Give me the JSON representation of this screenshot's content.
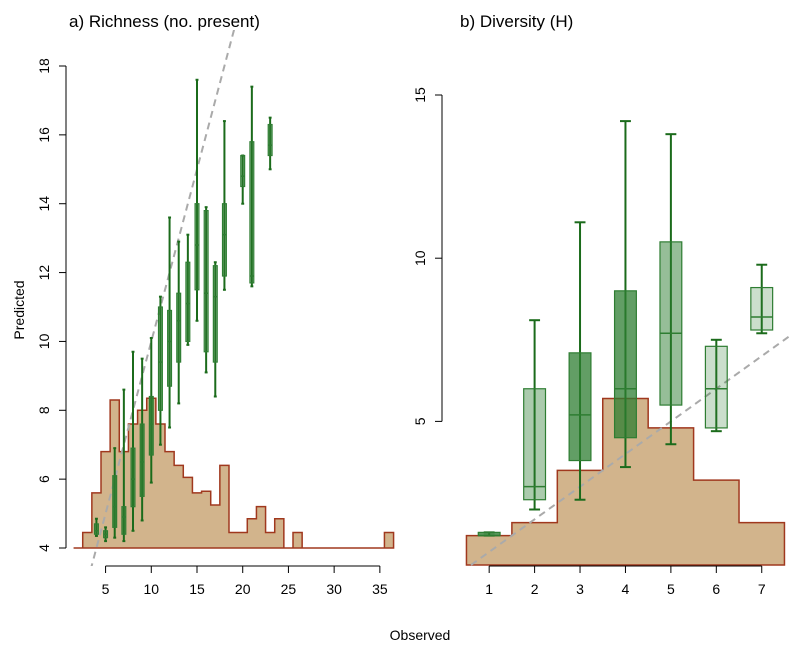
{
  "xlabel": "Observed",
  "ylabel": "Predicted",
  "colors": {
    "hist_fill": "#D2B48C",
    "hist_stroke": "#A0381E",
    "box_stroke": "#2E7D32",
    "whisker": "#1B6B1B",
    "identity_line": "#AAAAAA",
    "axis": "#000000"
  },
  "chart_data": [
    {
      "type": "box",
      "title": "a) Richness (no. present)",
      "xlim": [
        1,
        36
      ],
      "ylim": [
        4,
        18
      ],
      "xticks": [
        5,
        10,
        15,
        20,
        25,
        30,
        35
      ],
      "yticks": [
        4,
        6,
        8,
        10,
        12,
        14,
        16,
        18
      ],
      "identity_line": true,
      "histogram": {
        "x": [
          1.5,
          2.5,
          3.5,
          4.5,
          5.5,
          6.5,
          7.5,
          8.5,
          9.5,
          10.5,
          11.5,
          12.5,
          13.5,
          14.5,
          15.5,
          16.5,
          17.5,
          18.5,
          19.5,
          20.5,
          21.5,
          22.5,
          23.5,
          24.5,
          25.5,
          26.5,
          27.5,
          28.5,
          29.5,
          30.5,
          31.5,
          32.5,
          33.5,
          34.5,
          35.5,
          36.5
        ],
        "y": [
          4.0,
          4.45,
          5.6,
          6.8,
          8.3,
          6.8,
          7.6,
          8.0,
          8.35,
          7.6,
          6.8,
          6.4,
          6.05,
          5.6,
          5.65,
          5.25,
          6.4,
          4.45,
          4.45,
          4.85,
          5.2,
          4.45,
          4.85,
          4.0,
          4.45,
          4.0,
          4.0,
          4.0,
          4.0,
          4.0,
          4.0,
          4.0,
          4.0,
          4.0,
          4.45,
          4.0
        ]
      },
      "boxes": [
        {
          "x": 4,
          "q1": 4.4,
          "median": 4.5,
          "q3": 4.7,
          "lo": 4.35,
          "hi": 4.85,
          "opacity": 0.5
        },
        {
          "x": 5,
          "q1": 4.3,
          "median": 4.4,
          "q3": 4.5,
          "lo": 4.2,
          "hi": 4.6,
          "opacity": 0.5
        },
        {
          "x": 6,
          "q1": 4.6,
          "median": 5.2,
          "q3": 6.1,
          "lo": 4.3,
          "hi": 6.9,
          "opacity": 0.8
        },
        {
          "x": 7,
          "q1": 4.4,
          "median": 4.9,
          "q3": 5.2,
          "lo": 4.2,
          "hi": 8.6,
          "opacity": 0.6
        },
        {
          "x": 8,
          "q1": 5.2,
          "median": 6.0,
          "q3": 6.9,
          "lo": 4.5,
          "hi": 9.7,
          "opacity": 0.6
        },
        {
          "x": 9,
          "q1": 5.5,
          "median": 6.5,
          "q3": 7.6,
          "lo": 4.8,
          "hi": 9.5,
          "opacity": 0.7
        },
        {
          "x": 10,
          "q1": 6.7,
          "median": 7.6,
          "q3": 8.4,
          "lo": 5.9,
          "hi": 10.1,
          "opacity": 0.8
        },
        {
          "x": 11,
          "q1": 8.0,
          "median": 9.4,
          "q3": 11.0,
          "lo": 7.0,
          "hi": 11.3,
          "opacity": 0.5
        },
        {
          "x": 12,
          "q1": 8.7,
          "median": 10.0,
          "q3": 10.9,
          "lo": 7.5,
          "hi": 13.6,
          "opacity": 0.6
        },
        {
          "x": 13,
          "q1": 9.4,
          "median": 10.6,
          "q3": 11.4,
          "lo": 8.2,
          "hi": 12.9,
          "opacity": 0.6
        },
        {
          "x": 14,
          "q1": 10.0,
          "median": 11.1,
          "q3": 12.3,
          "lo": 9.9,
          "hi": 13.1,
          "opacity": 0.5
        },
        {
          "x": 15,
          "q1": 11.5,
          "median": 12.8,
          "q3": 14.0,
          "lo": 10.6,
          "hi": 17.6,
          "opacity": 0.5
        },
        {
          "x": 16,
          "q1": 9.7,
          "median": 11.4,
          "q3": 13.8,
          "lo": 9.1,
          "hi": 13.9,
          "opacity": 0.4
        },
        {
          "x": 17,
          "q1": 9.4,
          "median": 11.3,
          "q3": 12.2,
          "lo": 8.4,
          "hi": 12.3,
          "opacity": 0.4
        },
        {
          "x": 18,
          "q1": 11.9,
          "median": 13.1,
          "q3": 14.0,
          "lo": 11.5,
          "hi": 16.4,
          "opacity": 0.5
        },
        {
          "x": 20,
          "q1": 14.5,
          "median": 14.8,
          "q3": 15.4,
          "lo": 14.0,
          "hi": 15.4,
          "opacity": 0.4
        },
        {
          "x": 21,
          "q1": 11.7,
          "median": 11.9,
          "q3": 15.8,
          "lo": 11.6,
          "hi": 17.4,
          "opacity": 0.4
        },
        {
          "x": 23,
          "q1": 15.4,
          "median": 15.7,
          "q3": 16.3,
          "lo": 15.0,
          "hi": 16.5,
          "opacity": 0.6
        }
      ]
    },
    {
      "type": "box",
      "title": "b) Diversity (H)",
      "xlim": [
        0.6,
        7.6
      ],
      "ylim": [
        0.6,
        15.0
      ],
      "xticks": [
        1,
        2,
        3,
        4,
        5,
        6,
        7
      ],
      "yticks": [
        5,
        10,
        15
      ],
      "identity_line": true,
      "histogram": {
        "x": [
          0.5,
          1.5,
          2.5,
          3.5,
          4.5,
          5.5,
          6.5,
          7.5
        ],
        "y": [
          1.5,
          1.9,
          3.5,
          5.7,
          4.8,
          3.2,
          1.9,
          1.9
        ]
      },
      "boxes": [
        {
          "x": 1,
          "q1": 1.5,
          "median": 1.5,
          "q3": 1.6,
          "lo": 1.5,
          "hi": 1.6,
          "opacity": 0.8
        },
        {
          "x": 2,
          "q1": 2.6,
          "median": 3.0,
          "q3": 6.0,
          "lo": 2.3,
          "hi": 8.1,
          "opacity": 0.4
        },
        {
          "x": 3,
          "q1": 3.8,
          "median": 5.2,
          "q3": 7.1,
          "lo": 2.6,
          "hi": 11.1,
          "opacity": 0.75
        },
        {
          "x": 4,
          "q1": 4.5,
          "median": 6.0,
          "q3": 9.0,
          "lo": 3.6,
          "hi": 14.2,
          "opacity": 0.75
        },
        {
          "x": 5,
          "q1": 5.5,
          "median": 7.7,
          "q3": 10.5,
          "lo": 4.3,
          "hi": 13.8,
          "opacity": 0.5
        },
        {
          "x": 6,
          "q1": 4.8,
          "median": 6.0,
          "q3": 7.3,
          "lo": 4.7,
          "hi": 7.5,
          "opacity": 0.25
        },
        {
          "x": 7,
          "q1": 7.8,
          "median": 8.2,
          "q3": 9.1,
          "lo": 7.7,
          "hi": 9.8,
          "opacity": 0.25
        }
      ]
    }
  ]
}
